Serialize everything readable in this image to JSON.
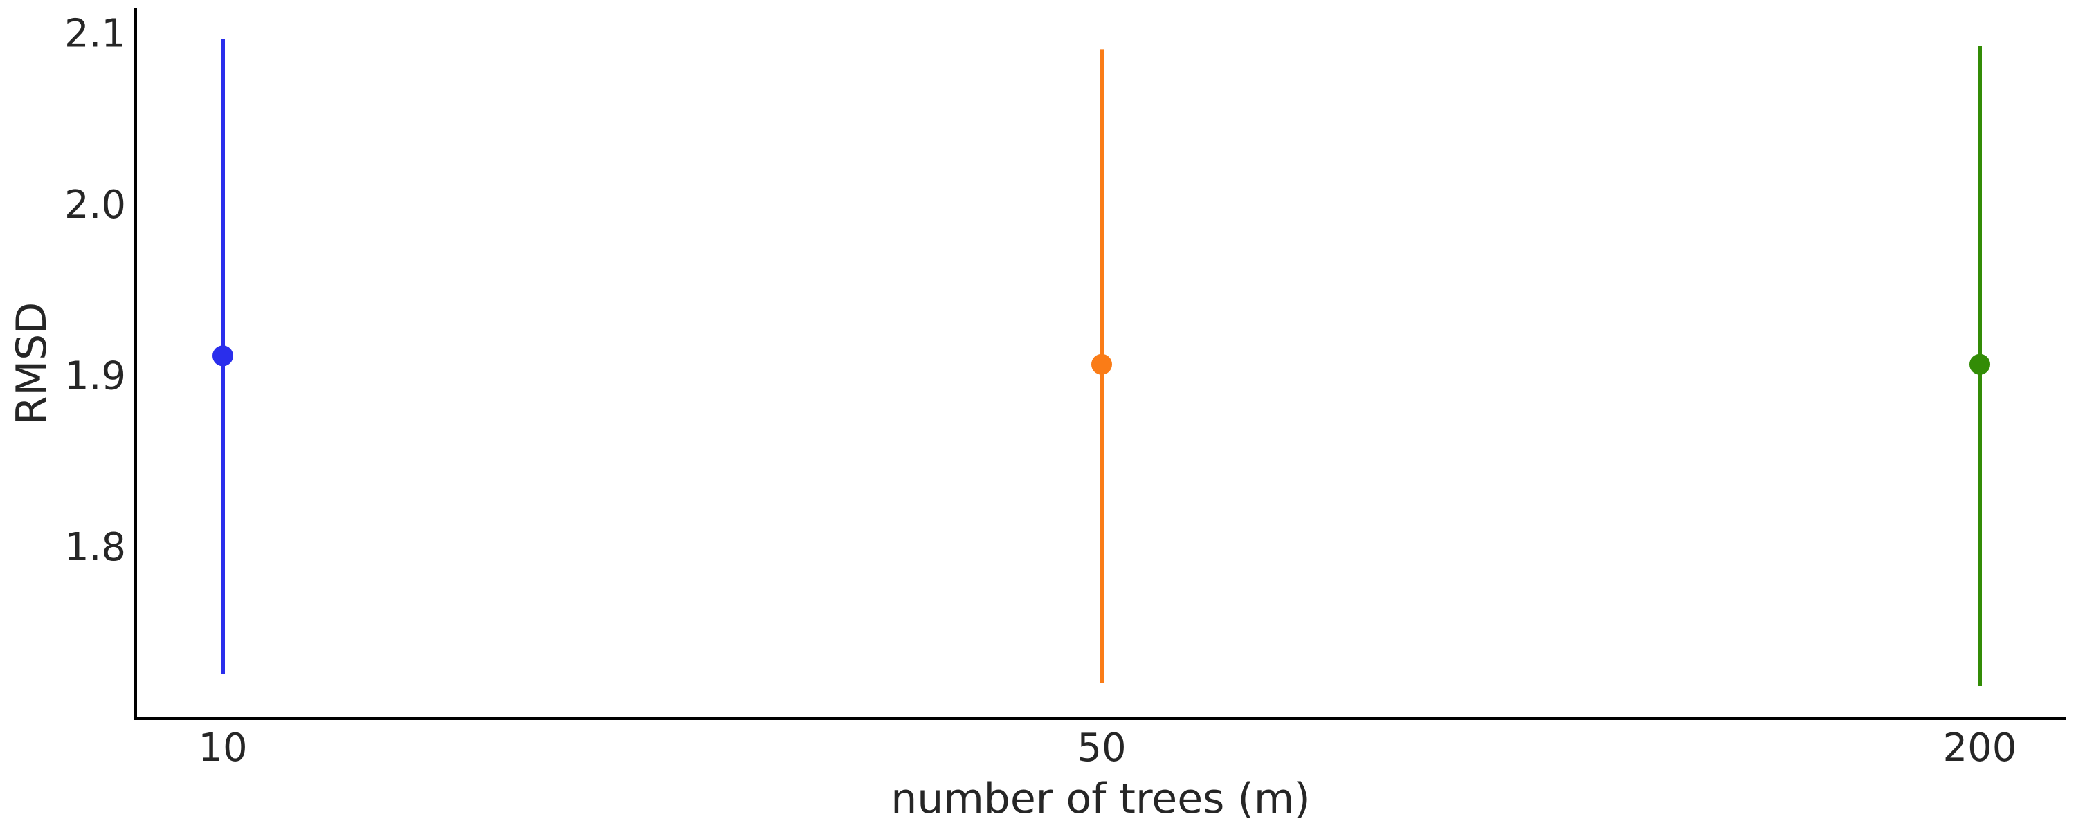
{
  "chart_data": {
    "type": "scatter",
    "xlabel": "number of trees (m)",
    "ylabel": "RMSD",
    "categories": [
      "10",
      "50",
      "200"
    ],
    "points": [
      {
        "category": "10",
        "value": 1.912,
        "low": 1.726,
        "high": 2.097,
        "color": "#2a2eec"
      },
      {
        "category": "50",
        "value": 1.907,
        "low": 1.721,
        "high": 2.091,
        "color": "#fa7c17"
      },
      {
        "category": "200",
        "value": 1.907,
        "low": 1.719,
        "high": 2.093,
        "color": "#328c06"
      }
    ],
    "yticks": [
      {
        "value": 1.8,
        "label": "1.8"
      },
      {
        "value": 1.9,
        "label": "1.9"
      },
      {
        "value": 2.0,
        "label": "2.0"
      },
      {
        "value": 2.1,
        "label": "2.1"
      }
    ],
    "ylim": [
      1.7,
      2.115
    ],
    "grid": false,
    "legend": "none"
  }
}
